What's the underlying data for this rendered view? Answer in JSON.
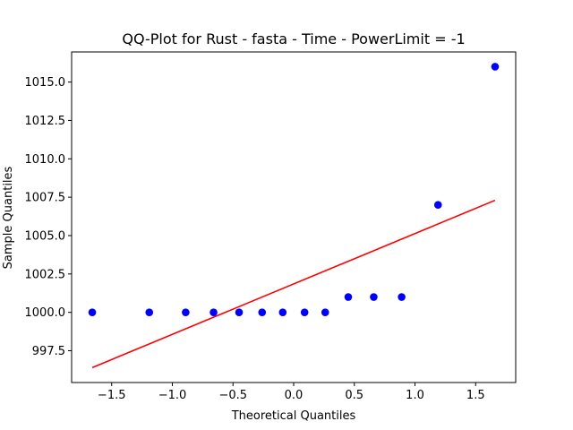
{
  "chart_data": {
    "type": "scatter",
    "title": "QQ-Plot for Rust - fasta - Time - PowerLimit = -1",
    "xlabel": "Theoretical Quantiles",
    "ylabel": "Sample Quantiles",
    "xlim": [
      -1.83,
      1.83
    ],
    "ylim": [
      995.43,
      1016.96
    ],
    "grid": false,
    "xticks": [
      -1.5,
      -1.0,
      -0.5,
      0.0,
      0.5,
      1.0,
      1.5
    ],
    "xtick_labels": [
      "−1.5",
      "−1.0",
      "−0.5",
      "0.0",
      "0.5",
      "1.0",
      "1.5"
    ],
    "yticks": [
      997.5,
      1000.0,
      1002.5,
      1005.0,
      1007.5,
      1010.0,
      1012.5,
      1015.0
    ],
    "ytick_labels": [
      "997.5",
      "1000.0",
      "1002.5",
      "1005.0",
      "1007.5",
      "1010.0",
      "1012.5",
      "1015.0"
    ],
    "series": [
      {
        "type": "scatter",
        "color": "#0000ff",
        "x": [
          -1.66,
          -1.19,
          -0.89,
          -0.66,
          -0.45,
          -0.26,
          -0.09,
          0.09,
          0.26,
          0.45,
          0.66,
          0.89,
          1.19,
          1.66
        ],
        "y": [
          1000,
          1000,
          1000,
          1000,
          1000,
          1000,
          1000,
          1000,
          1000,
          1001,
          1001,
          1001,
          1007,
          1016
        ]
      },
      {
        "type": "line",
        "color": "#ff0000",
        "x": [
          -1.66,
          1.66
        ],
        "y": [
          996.4,
          1007.3
        ]
      }
    ]
  }
}
